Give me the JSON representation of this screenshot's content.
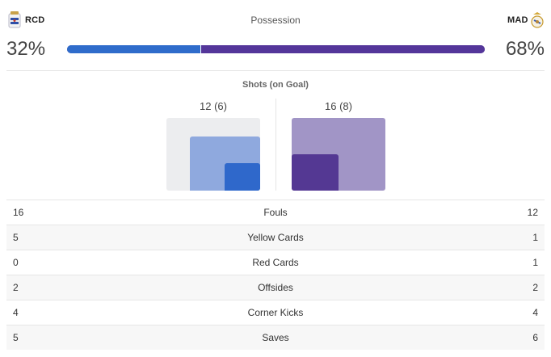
{
  "home": {
    "abbr": "RCD",
    "possession": "32%",
    "possession_value": 32,
    "shots_text": "12 (6)",
    "shots": 12,
    "shots_on_goal": 6,
    "color": "#2f6ccb"
  },
  "away": {
    "abbr": "MAD",
    "possession": "68%",
    "possession_value": 68,
    "shots_text": "16 (8)",
    "shots": 16,
    "shots_on_goal": 8,
    "color": "#54369a"
  },
  "possession_title": "Possession",
  "shots_title": "Shots (on Goal)",
  "stats": [
    {
      "label": "Fouls",
      "home": "16",
      "away": "12"
    },
    {
      "label": "Yellow Cards",
      "home": "5",
      "away": "1"
    },
    {
      "label": "Red Cards",
      "home": "0",
      "away": "1"
    },
    {
      "label": "Offsides",
      "home": "2",
      "away": "2"
    },
    {
      "label": "Corner Kicks",
      "home": "4",
      "away": "4"
    },
    {
      "label": "Saves",
      "home": "5",
      "away": "6"
    }
  ],
  "icons": {
    "home_crest": "deportivo-crest-icon",
    "away_crest": "real-madrid-crest-icon"
  }
}
